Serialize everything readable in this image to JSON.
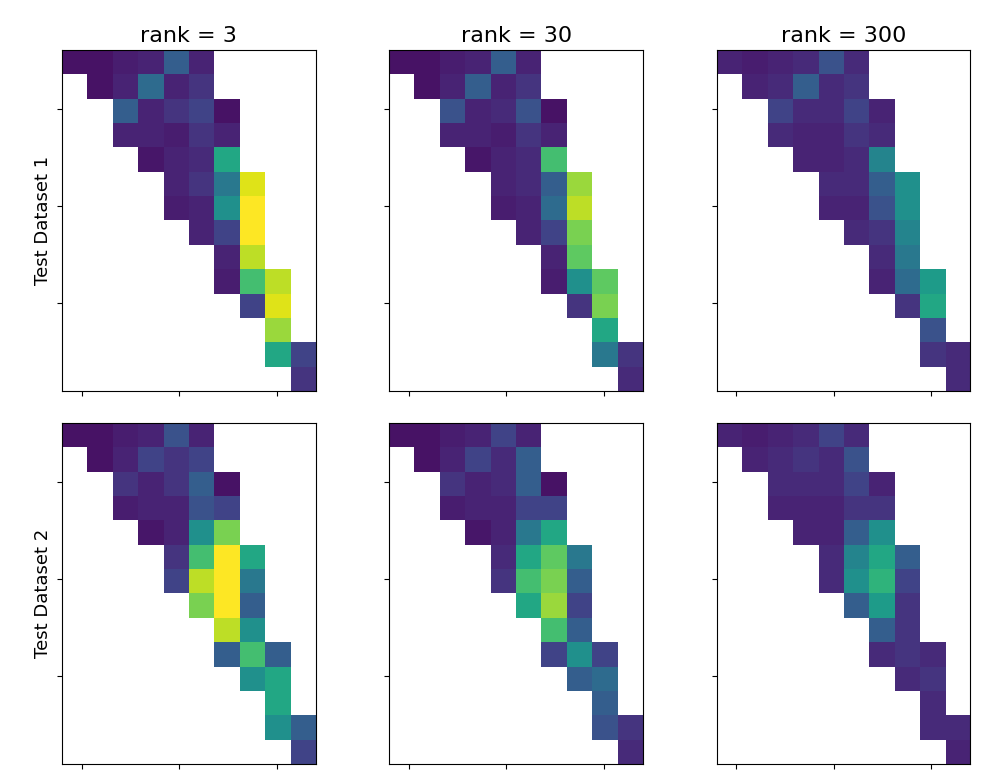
{
  "chart_data": [
    {
      "type": "heatmap",
      "title": "rank = 3",
      "ylabel": "Test Dataset 1",
      "color": "viridis",
      "color_range": [
        0,
        1
      ],
      "xlim": [
        0,
        1300
      ],
      "ylim": [
        1750,
        0
      ],
      "xticks": [
        100,
        600,
        1100
      ],
      "yticks": [
        300,
        800,
        1300
      ],
      "tick_labels": false,
      "cells": [
        [
          0.05,
          0.05,
          0.08,
          0.1,
          0.3,
          0.1,
          null,
          null,
          null,
          null
        ],
        [
          null,
          0.05,
          0.1,
          0.35,
          0.1,
          0.15,
          null,
          null,
          null,
          null
        ],
        [
          null,
          null,
          0.3,
          0.1,
          0.15,
          0.2,
          0.05,
          null,
          null,
          null
        ],
        [
          null,
          null,
          0.1,
          0.1,
          0.08,
          0.15,
          0.1,
          null,
          null,
          null
        ],
        [
          null,
          null,
          null,
          0.06,
          0.1,
          0.12,
          0.6,
          null,
          null,
          null
        ],
        [
          null,
          null,
          null,
          null,
          0.1,
          0.15,
          0.4,
          0.95,
          null,
          null
        ],
        [
          null,
          null,
          null,
          null,
          0.08,
          0.1,
          0.5,
          1.0,
          null,
          null
        ],
        [
          null,
          null,
          null,
          null,
          null,
          0.1,
          0.2,
          1.0,
          null,
          null
        ],
        [
          null,
          null,
          null,
          null,
          null,
          null,
          0.1,
          0.9,
          null,
          null
        ],
        [
          null,
          null,
          null,
          null,
          null,
          null,
          0.08,
          0.7,
          0.9,
          null
        ],
        [
          null,
          null,
          null,
          null,
          null,
          null,
          null,
          0.2,
          0.95,
          null
        ],
        [
          null,
          null,
          null,
          null,
          null,
          null,
          null,
          null,
          0.85,
          null
        ],
        [
          null,
          null,
          null,
          null,
          null,
          null,
          null,
          null,
          0.6,
          0.2
        ],
        [
          null,
          null,
          null,
          null,
          null,
          null,
          null,
          null,
          null,
          0.15
        ]
      ]
    },
    {
      "type": "heatmap",
      "title": "rank = 30",
      "color": "viridis",
      "color_range": [
        0,
        1
      ],
      "xlim": [
        0,
        1300
      ],
      "ylim": [
        1750,
        0
      ],
      "xticks": [
        100,
        600,
        1100
      ],
      "yticks": [
        300,
        800,
        1300
      ],
      "tick_labels": false,
      "cells": [
        [
          0.05,
          0.05,
          0.08,
          0.1,
          0.3,
          0.1,
          null,
          null,
          null,
          null
        ],
        [
          null,
          0.05,
          0.1,
          0.3,
          0.1,
          0.15,
          null,
          null,
          null,
          null
        ],
        [
          null,
          null,
          0.25,
          0.1,
          0.12,
          0.25,
          0.05,
          null,
          null,
          null
        ],
        [
          null,
          null,
          0.1,
          0.1,
          0.08,
          0.15,
          0.1,
          null,
          null,
          null
        ],
        [
          null,
          null,
          null,
          0.06,
          0.1,
          0.12,
          0.7,
          null,
          null,
          null
        ],
        [
          null,
          null,
          null,
          null,
          0.1,
          0.12,
          0.3,
          0.85,
          null,
          null
        ],
        [
          null,
          null,
          null,
          null,
          0.08,
          0.1,
          0.35,
          0.9,
          null,
          null
        ],
        [
          null,
          null,
          null,
          null,
          null,
          0.1,
          0.2,
          0.8,
          null,
          null
        ],
        [
          null,
          null,
          null,
          null,
          null,
          null,
          0.1,
          0.75,
          null,
          null
        ],
        [
          null,
          null,
          null,
          null,
          null,
          null,
          0.08,
          0.5,
          0.75,
          null
        ],
        [
          null,
          null,
          null,
          null,
          null,
          null,
          null,
          0.15,
          0.8,
          null
        ],
        [
          null,
          null,
          null,
          null,
          null,
          null,
          null,
          null,
          0.6,
          null
        ],
        [
          null,
          null,
          null,
          null,
          null,
          null,
          null,
          null,
          0.4,
          0.15
        ],
        [
          null,
          null,
          null,
          null,
          null,
          null,
          null,
          null,
          null,
          0.12
        ]
      ]
    },
    {
      "type": "heatmap",
      "title": "rank = 300",
      "color": "viridis",
      "color_range": [
        0,
        1
      ],
      "xlim": [
        0,
        1300
      ],
      "ylim": [
        1750,
        0
      ],
      "xticks": [
        100,
        600,
        1100
      ],
      "yticks": [
        300,
        800,
        1300
      ],
      "tick_labels": false,
      "cells": [
        [
          0.1,
          0.08,
          0.1,
          0.12,
          0.25,
          0.12,
          null,
          null,
          null,
          null
        ],
        [
          null,
          0.1,
          0.12,
          0.3,
          0.12,
          0.15,
          null,
          null,
          null,
          null
        ],
        [
          null,
          null,
          0.2,
          0.12,
          0.12,
          0.2,
          0.1,
          null,
          null,
          null
        ],
        [
          null,
          null,
          0.12,
          0.1,
          0.1,
          0.15,
          0.12,
          null,
          null,
          null
        ],
        [
          null,
          null,
          null,
          0.1,
          0.1,
          0.12,
          0.45,
          null,
          null,
          null
        ],
        [
          null,
          null,
          null,
          null,
          0.12,
          0.12,
          0.3,
          0.5,
          null,
          null
        ],
        [
          null,
          null,
          null,
          null,
          0.1,
          0.1,
          0.25,
          0.5,
          null,
          null
        ],
        [
          null,
          null,
          null,
          null,
          null,
          0.12,
          0.15,
          0.45,
          null,
          null
        ],
        [
          null,
          null,
          null,
          null,
          null,
          null,
          0.12,
          0.4,
          null,
          null
        ],
        [
          null,
          null,
          null,
          null,
          null,
          null,
          0.1,
          0.35,
          0.55,
          null
        ],
        [
          null,
          null,
          null,
          null,
          null,
          null,
          null,
          0.15,
          0.6,
          null
        ],
        [
          null,
          null,
          null,
          null,
          null,
          null,
          null,
          null,
          0.25,
          null
        ],
        [
          null,
          null,
          null,
          null,
          null,
          null,
          null,
          null,
          0.15,
          0.12
        ],
        [
          null,
          null,
          null,
          null,
          null,
          null,
          null,
          null,
          null,
          0.12
        ]
      ]
    },
    {
      "type": "heatmap",
      "ylabel": "Test Dataset 2",
      "color": "viridis",
      "color_range": [
        0,
        1
      ],
      "xlim": [
        0,
        1300
      ],
      "ylim": [
        1750,
        0
      ],
      "xticks": [
        100,
        600,
        1100
      ],
      "yticks": [
        300,
        800,
        1300
      ],
      "tick_labels": false,
      "cells": [
        [
          0.05,
          0.05,
          0.08,
          0.1,
          0.25,
          0.1,
          null,
          null,
          null,
          null
        ],
        [
          null,
          0.05,
          0.1,
          0.2,
          0.15,
          0.2,
          null,
          null,
          null,
          null
        ],
        [
          null,
          null,
          0.15,
          0.1,
          0.15,
          0.3,
          0.05,
          null,
          null,
          null
        ],
        [
          null,
          null,
          0.08,
          0.1,
          0.1,
          0.25,
          0.2,
          null,
          null,
          null
        ],
        [
          null,
          null,
          null,
          0.06,
          0.1,
          0.5,
          0.8,
          null,
          null,
          null
        ],
        [
          null,
          null,
          null,
          null,
          0.15,
          0.7,
          1.0,
          0.6,
          null,
          null
        ],
        [
          null,
          null,
          null,
          null,
          0.2,
          0.9,
          1.0,
          0.4,
          null,
          null
        ],
        [
          null,
          null,
          null,
          null,
          null,
          0.8,
          1.0,
          0.3,
          null,
          null
        ],
        [
          null,
          null,
          null,
          null,
          null,
          null,
          0.9,
          0.5,
          null,
          null
        ],
        [
          null,
          null,
          null,
          null,
          null,
          null,
          0.3,
          0.7,
          0.3,
          null
        ],
        [
          null,
          null,
          null,
          null,
          null,
          null,
          null,
          0.5,
          0.6,
          null
        ],
        [
          null,
          null,
          null,
          null,
          null,
          null,
          null,
          null,
          0.6,
          null
        ],
        [
          null,
          null,
          null,
          null,
          null,
          null,
          null,
          null,
          0.5,
          0.3
        ],
        [
          null,
          null,
          null,
          null,
          null,
          null,
          null,
          null,
          null,
          0.2
        ]
      ]
    },
    {
      "type": "heatmap",
      "color": "viridis",
      "color_range": [
        0,
        1
      ],
      "xlim": [
        0,
        1300
      ],
      "ylim": [
        1750,
        0
      ],
      "xticks": [
        100,
        600,
        1100
      ],
      "yticks": [
        300,
        800,
        1300
      ],
      "tick_labels": false,
      "cells": [
        [
          0.05,
          0.05,
          0.08,
          0.1,
          0.2,
          0.1,
          null,
          null,
          null,
          null
        ],
        [
          null,
          0.05,
          0.1,
          0.2,
          0.12,
          0.3,
          null,
          null,
          null,
          null
        ],
        [
          null,
          null,
          0.15,
          0.1,
          0.12,
          0.3,
          0.05,
          null,
          null,
          null
        ],
        [
          null,
          null,
          0.08,
          0.1,
          0.1,
          0.2,
          0.2,
          null,
          null,
          null
        ],
        [
          null,
          null,
          null,
          0.06,
          0.1,
          0.4,
          0.6,
          null,
          null,
          null
        ],
        [
          null,
          null,
          null,
          null,
          0.12,
          0.6,
          0.75,
          0.4,
          null,
          null
        ],
        [
          null,
          null,
          null,
          null,
          0.15,
          0.7,
          0.8,
          0.3,
          null,
          null
        ],
        [
          null,
          null,
          null,
          null,
          null,
          0.6,
          0.85,
          0.2,
          null,
          null
        ],
        [
          null,
          null,
          null,
          null,
          null,
          null,
          0.7,
          0.3,
          null,
          null
        ],
        [
          null,
          null,
          null,
          null,
          null,
          null,
          0.2,
          0.5,
          0.2,
          null
        ],
        [
          null,
          null,
          null,
          null,
          null,
          null,
          null,
          0.3,
          0.35,
          null
        ],
        [
          null,
          null,
          null,
          null,
          null,
          null,
          null,
          null,
          0.3,
          null
        ],
        [
          null,
          null,
          null,
          null,
          null,
          null,
          null,
          null,
          0.25,
          0.15
        ],
        [
          null,
          null,
          null,
          null,
          null,
          null,
          null,
          null,
          null,
          0.12
        ]
      ]
    },
    {
      "type": "heatmap",
      "color": "viridis",
      "color_range": [
        0,
        1
      ],
      "xlim": [
        0,
        1300
      ],
      "ylim": [
        1750,
        0
      ],
      "xticks": [
        100,
        600,
        1100
      ],
      "yticks": [
        300,
        800,
        1300
      ],
      "tick_labels": false,
      "cells": [
        [
          0.1,
          0.08,
          0.1,
          0.12,
          0.2,
          0.12,
          null,
          null,
          null,
          null
        ],
        [
          null,
          0.1,
          0.12,
          0.15,
          0.12,
          0.25,
          null,
          null,
          null,
          null
        ],
        [
          null,
          null,
          0.12,
          0.12,
          0.12,
          0.2,
          0.1,
          null,
          null,
          null
        ],
        [
          null,
          null,
          0.1,
          0.1,
          0.1,
          0.15,
          0.15,
          null,
          null,
          null
        ],
        [
          null,
          null,
          null,
          0.1,
          0.1,
          0.3,
          0.5,
          null,
          null,
          null
        ],
        [
          null,
          null,
          null,
          null,
          0.12,
          0.45,
          0.6,
          0.3,
          null,
          null
        ],
        [
          null,
          null,
          null,
          null,
          0.12,
          0.5,
          0.65,
          0.2,
          null,
          null
        ],
        [
          null,
          null,
          null,
          null,
          null,
          0.3,
          0.55,
          0.15,
          null,
          null
        ],
        [
          null,
          null,
          null,
          null,
          null,
          null,
          0.3,
          0.15,
          null,
          null
        ],
        [
          null,
          null,
          null,
          null,
          null,
          null,
          0.12,
          0.15,
          0.12,
          null
        ],
        [
          null,
          null,
          null,
          null,
          null,
          null,
          null,
          0.12,
          0.15,
          null
        ],
        [
          null,
          null,
          null,
          null,
          null,
          null,
          null,
          null,
          0.12,
          null
        ],
        [
          null,
          null,
          null,
          null,
          null,
          null,
          null,
          null,
          0.12,
          0.12
        ],
        [
          null,
          null,
          null,
          null,
          null,
          null,
          null,
          null,
          null,
          0.1
        ]
      ]
    }
  ]
}
